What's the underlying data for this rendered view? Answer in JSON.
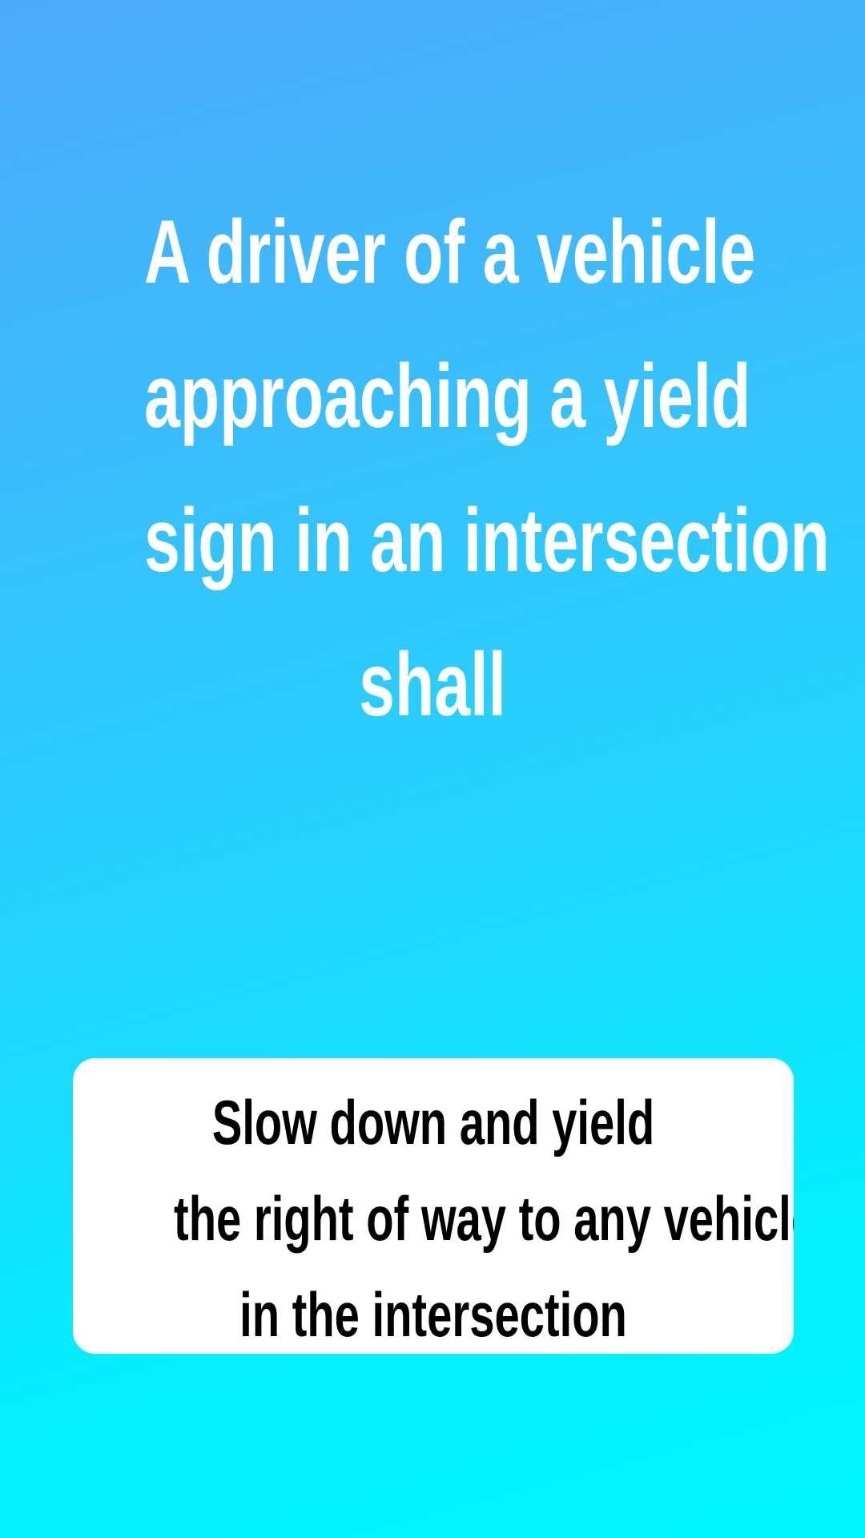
{
  "question": {
    "lines": [
      "A driver of a vehicle",
      "approaching a yield",
      "sign in an intersection",
      "shall"
    ]
  },
  "answer": {
    "lines": [
      "Slow down and yield",
      "the right of way to any vehicle",
      "in the intersection"
    ]
  },
  "colors": {
    "background_top": "#4daafb",
    "background_bottom": "#00f6ff",
    "question_text": "#ffffff",
    "answer_card": "#ffffff",
    "answer_text": "#000000"
  }
}
